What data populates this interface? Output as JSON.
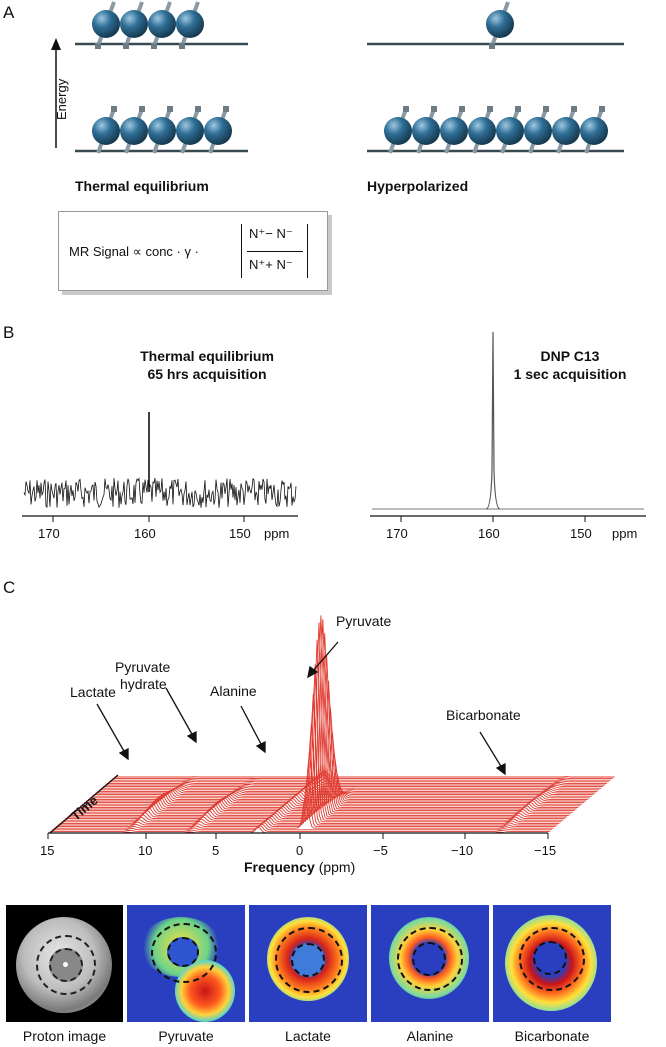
{
  "panel_a": {
    "letter": "A",
    "energy_label": "Energy",
    "left_caption": "Thermal equilibrium",
    "right_caption": "Hyperpolarized",
    "formula": {
      "prefix": "MR Signal ∝ conc · γ ·",
      "numerator": "N⁺− N⁻",
      "denominator": "N⁺+ N⁻"
    }
  },
  "panel_b": {
    "letter": "B",
    "left_title_1": "Thermal equilibrium",
    "left_title_2": "65 hrs acquisition",
    "right_title_1": "DNP C13",
    "right_title_2": "1 sec acquisition",
    "ticks": [
      "170",
      "160",
      "150",
      "ppm"
    ]
  },
  "panel_c": {
    "letter": "C",
    "labels": {
      "pyruvate": "Pyruvate",
      "pyruvate_hydrate_1": "Pyruvate",
      "pyruvate_hydrate_2": "hydrate",
      "alanine": "Alanine",
      "lactate": "Lactate",
      "bicarbonate": "Bicarbonate",
      "time": "Time"
    },
    "x_ticks": [
      "15",
      "10",
      "5",
      "0",
      "−5",
      "−10",
      "−15"
    ],
    "xlabel_bold": "Frequency",
    "xlabel_unit": " (ppm)",
    "line_color": "#e03a2f"
  },
  "images": {
    "captions": [
      "Proton image",
      "Pyruvate",
      "Lactate",
      "Alanine",
      "Bicarbonate"
    ]
  },
  "colors": {
    "sphere": "#2f6f96",
    "baseline": "#3a4a52",
    "heatmap_bg": "#2a3fbf"
  }
}
